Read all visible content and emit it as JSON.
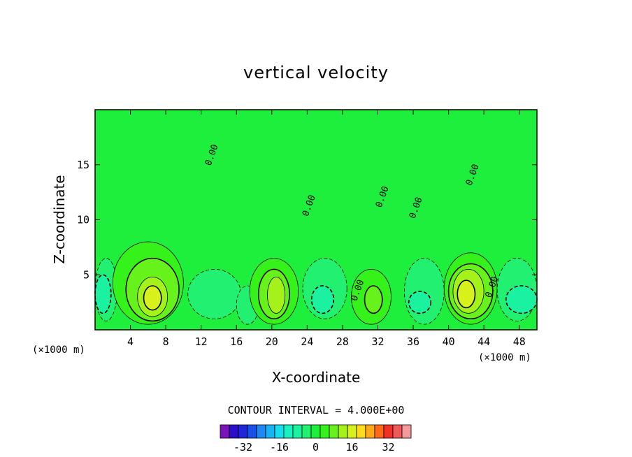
{
  "chart_data": {
    "type": "heatmap",
    "title": "vertical velocity",
    "xlabel": "X-coordinate",
    "ylabel": "Z-coordinate",
    "x_units": "(×1000 m)",
    "y_units": "(×1000 m)",
    "xlim": [
      0,
      50
    ],
    "ylim": [
      0,
      20
    ],
    "x_ticks": [
      4,
      8,
      12,
      16,
      20,
      24,
      28,
      32,
      36,
      40,
      44,
      48
    ],
    "y_ticks": [
      5,
      10,
      15
    ],
    "contour_interval_text": "CONTOUR INTERVAL = 4.000E+00",
    "contour_interval": 4.0,
    "zero_contour_labels": [
      "0.00",
      "0.00",
      "0.00",
      "0.00",
      "0.00",
      "0.00",
      "0.00"
    ],
    "colorbar": {
      "levels": [
        -40,
        -36,
        -32,
        -28,
        -24,
        -20,
        -16,
        -12,
        -8,
        -4,
        0,
        4,
        8,
        12,
        16,
        20,
        24,
        28,
        32,
        36,
        40
      ],
      "colors": [
        "#7a14b8",
        "#2c0ec8",
        "#1f25d8",
        "#1a50ea",
        "#1f88f3",
        "#18b2f5",
        "#15dfec",
        "#17f2c0",
        "#1af2a0",
        "#21f070",
        "#1eee3c",
        "#35f21a",
        "#66f21a",
        "#a4f21a",
        "#d7f21a",
        "#ffdc19",
        "#ffa818",
        "#ff6a1a",
        "#f2302a",
        "#f05a5a",
        "#f59a9a"
      ],
      "tick_labels": [
        "-32",
        "-16",
        "0",
        "16",
        "32"
      ]
    },
    "cells": [
      {
        "x0": 0,
        "x1": 50,
        "z0": 0,
        "z1": 20,
        "value": 0
      },
      {
        "x0": 0,
        "x1": 2.5,
        "z0": 0.8,
        "z1": 6.5,
        "value": -4
      },
      {
        "x0": 0,
        "x1": 1.8,
        "z0": 1.5,
        "z1": 5.0,
        "value": -8
      },
      {
        "x0": 2,
        "x1": 10,
        "z0": 0.5,
        "z1": 8,
        "value": 4
      },
      {
        "x0": 3.5,
        "x1": 9.5,
        "z0": 0.8,
        "z1": 6.5,
        "value": 8
      },
      {
        "x0": 4.8,
        "x1": 8.2,
        "z0": 1.2,
        "z1": 4.8,
        "value": 12
      },
      {
        "x0": 5.5,
        "x1": 7.5,
        "z0": 1.8,
        "z1": 4.0,
        "value": 16
      },
      {
        "x0": 10.5,
        "x1": 16.5,
        "z0": 1.0,
        "z1": 5.5,
        "value": -4
      },
      {
        "x0": 16,
        "x1": 18.5,
        "z0": 0.5,
        "z1": 4.0,
        "value": -4
      },
      {
        "x0": 17.5,
        "x1": 23,
        "z0": 0.5,
        "z1": 6.5,
        "value": 4
      },
      {
        "x0": 18.5,
        "x1": 22,
        "z0": 1.0,
        "z1": 5.5,
        "value": 8
      },
      {
        "x0": 19.5,
        "x1": 21.5,
        "z0": 1.5,
        "z1": 4.8,
        "value": 12
      },
      {
        "x0": 23.5,
        "x1": 28.5,
        "z0": 1.0,
        "z1": 6.5,
        "value": -4
      },
      {
        "x0": 24.5,
        "x1": 27,
        "z0": 1.5,
        "z1": 4.0,
        "value": -8
      },
      {
        "x0": 29,
        "x1": 33.5,
        "z0": 0.5,
        "z1": 5.5,
        "value": 4
      },
      {
        "x0": 30.5,
        "x1": 32.5,
        "z0": 1.5,
        "z1": 4.0,
        "value": 8
      },
      {
        "x0": 35,
        "x1": 39.5,
        "z0": 0.5,
        "z1": 6.5,
        "value": -4
      },
      {
        "x0": 35.5,
        "x1": 38,
        "z0": 1.5,
        "z1": 3.5,
        "value": -8
      },
      {
        "x0": 39.5,
        "x1": 45.5,
        "z0": 0.5,
        "z1": 7.0,
        "value": 4
      },
      {
        "x0": 40,
        "x1": 45,
        "z0": 1.0,
        "z1": 6.0,
        "value": 8
      },
      {
        "x0": 40.5,
        "x1": 44,
        "z0": 1.5,
        "z1": 5.5,
        "value": 12
      },
      {
        "x0": 41,
        "x1": 43,
        "z0": 2.0,
        "z1": 4.5,
        "value": 16
      },
      {
        "x0": 45.5,
        "x1": 50,
        "z0": 0.8,
        "z1": 6.5,
        "value": -4
      },
      {
        "x0": 46.5,
        "x1": 50,
        "z0": 1.5,
        "z1": 4.0,
        "value": -8
      }
    ]
  }
}
